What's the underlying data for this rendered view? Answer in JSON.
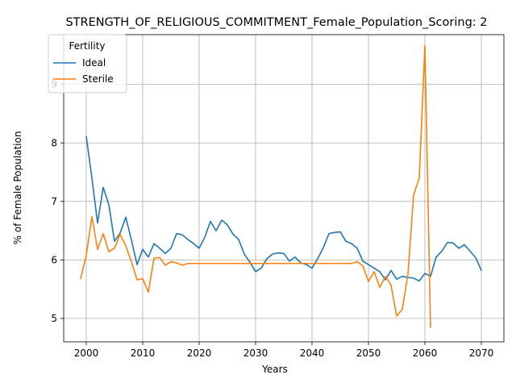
{
  "chart_data": {
    "type": "line",
    "title": "STRENGTH_OF_RELIGIOUS_COMMITMENT_Female_Population_Scoring: 2",
    "xlabel": "Years",
    "ylabel": "% of Female Population",
    "xlim": [
      1996,
      2074
    ],
    "ylim": [
      4.6,
      9.85
    ],
    "xticks": [
      2000,
      2010,
      2020,
      2030,
      2040,
      2050,
      2060,
      2070
    ],
    "yticks": [
      5,
      6,
      7,
      8,
      9
    ],
    "grid": true,
    "legend": {
      "title": "Fertility",
      "placement": "top-left"
    },
    "series": [
      {
        "name": "Ideal",
        "color": "#1f77b4",
        "x": [
          2000,
          2001,
          2002,
          2003,
          2004,
          2005,
          2006,
          2007,
          2008,
          2009,
          2010,
          2011,
          2012,
          2013,
          2014,
          2015,
          2016,
          2017,
          2018,
          2019,
          2020,
          2021,
          2022,
          2023,
          2024,
          2025,
          2026,
          2027,
          2028,
          2029,
          2030,
          2031,
          2032,
          2033,
          2034,
          2035,
          2036,
          2037,
          2038,
          2039,
          2040,
          2041,
          2042,
          2043,
          2044,
          2045,
          2046,
          2047,
          2048,
          2049,
          2050,
          2051,
          2052,
          2053,
          2054,
          2055,
          2056,
          2057,
          2058,
          2059,
          2060,
          2061,
          2062,
          2063,
          2064,
          2065,
          2066,
          2067,
          2068,
          2069,
          2070
        ],
        "y": [
          8.11,
          7.4,
          6.63,
          7.24,
          6.94,
          6.32,
          6.46,
          6.73,
          6.34,
          5.92,
          6.18,
          6.05,
          6.28,
          6.2,
          6.11,
          6.2,
          6.45,
          6.43,
          6.35,
          6.28,
          6.2,
          6.39,
          6.66,
          6.5,
          6.68,
          6.6,
          6.44,
          6.35,
          6.1,
          5.96,
          5.8,
          5.86,
          6.02,
          6.1,
          6.12,
          6.11,
          5.98,
          6.05,
          5.95,
          5.92,
          5.86,
          6.02,
          6.21,
          6.45,
          6.47,
          6.48,
          6.32,
          6.28,
          6.2,
          5.98,
          5.92,
          5.86,
          5.8,
          5.66,
          5.82,
          5.67,
          5.72,
          5.7,
          5.69,
          5.64,
          5.77,
          5.72,
          6.05,
          6.15,
          6.3,
          6.29,
          6.2,
          6.26,
          6.15,
          6.04,
          5.82
        ]
      },
      {
        "name": "Sterile",
        "color": "#ff7f0e",
        "x": [
          1999,
          2000,
          2001,
          2002,
          2003,
          2004,
          2005,
          2006,
          2007,
          2008,
          2009,
          2010,
          2011,
          2012,
          2013,
          2014,
          2015,
          2016,
          2017,
          2018,
          2019,
          2020,
          2021,
          2022,
          2023,
          2024,
          2025,
          2026,
          2027,
          2028,
          2029,
          2030,
          2031,
          2032,
          2033,
          2034,
          2035,
          2036,
          2037,
          2038,
          2039,
          2040,
          2041,
          2042,
          2043,
          2044,
          2045,
          2046,
          2047,
          2048,
          2049,
          2050,
          2051,
          2052,
          2053,
          2054,
          2055,
          2056,
          2057,
          2058,
          2059,
          2060,
          2061
        ],
        "y": [
          5.68,
          6.08,
          6.74,
          6.18,
          6.45,
          6.14,
          6.2,
          6.44,
          6.24,
          5.97,
          5.66,
          5.68,
          5.45,
          6.03,
          6.04,
          5.91,
          5.97,
          5.95,
          5.91,
          5.94,
          5.94,
          5.94,
          5.94,
          5.94,
          5.94,
          5.94,
          5.94,
          5.94,
          5.94,
          5.94,
          5.94,
          5.94,
          5.94,
          5.94,
          5.94,
          5.94,
          5.94,
          5.94,
          5.94,
          5.94,
          5.94,
          5.94,
          5.94,
          5.94,
          5.94,
          5.94,
          5.94,
          5.94,
          5.94,
          5.97,
          5.9,
          5.63,
          5.8,
          5.53,
          5.72,
          5.57,
          5.04,
          5.16,
          5.76,
          7.11,
          7.4,
          9.66,
          4.85
        ]
      }
    ]
  }
}
